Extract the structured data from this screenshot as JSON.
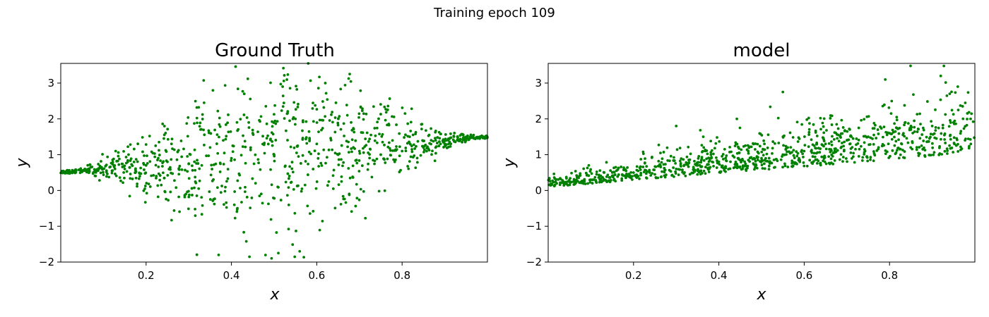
{
  "suptitle": "Training epoch 109",
  "chart_data": [
    {
      "type": "scatter",
      "title": "Ground Truth",
      "xlabel": "x",
      "ylabel": "y",
      "xlim": [
        0.0,
        1.0
      ],
      "ylim": [
        -2.0,
        3.55
      ],
      "xticks": [
        0.2,
        0.4,
        0.6,
        0.8
      ],
      "yticks": [
        -2,
        -1,
        0,
        1,
        2,
        3
      ],
      "color": "#008000",
      "n_points": 1000,
      "noise_profile": "mean rises from 0.5 (x=0) to 1.5 (x=1); spread near zero at edges, maximal (~1.2 std) around x=0.5",
      "sample_points": [
        [
          0.02,
          0.5
        ],
        [
          0.05,
          0.52
        ],
        [
          0.08,
          0.55
        ],
        [
          0.12,
          0.55
        ],
        [
          0.15,
          0.6
        ],
        [
          0.2,
          0.7
        ],
        [
          0.25,
          0.8
        ],
        [
          0.3,
          0.75
        ],
        [
          0.35,
          1.2
        ],
        [
          0.4,
          0.9
        ],
        [
          0.45,
          1.6
        ],
        [
          0.5,
          1.0
        ],
        [
          0.55,
          2.0
        ],
        [
          0.6,
          1.3
        ],
        [
          0.65,
          1.0
        ],
        [
          0.7,
          1.1
        ],
        [
          0.75,
          1.0
        ],
        [
          0.8,
          1.1
        ],
        [
          0.85,
          1.2
        ],
        [
          0.9,
          1.3
        ],
        [
          0.95,
          1.4
        ],
        [
          0.99,
          1.48
        ],
        [
          0.37,
          -1.8
        ],
        [
          0.51,
          -1.75
        ],
        [
          0.56,
          -1.7
        ],
        [
          0.62,
          3.0
        ],
        [
          0.58,
          3.55
        ],
        [
          0.52,
          2.9
        ],
        [
          0.43,
          2.7
        ]
      ]
    },
    {
      "type": "scatter",
      "title": "model",
      "xlabel": "x",
      "ylabel": "y",
      "xlim": [
        0.0,
        1.0
      ],
      "ylim": [
        -2.0,
        3.55
      ],
      "xticks": [
        0.2,
        0.4,
        0.6,
        0.8
      ],
      "yticks": [
        -2,
        -1,
        0,
        1,
        2,
        3
      ],
      "color": "#008000",
      "n_points": 1000,
      "noise_profile": "lower edge rises from ~0.1 at x=0 to ~1.0 at x=1; upward-skewed spread growing with x",
      "sample_points": [
        [
          0.02,
          0.2
        ],
        [
          0.05,
          0.25
        ],
        [
          0.1,
          0.3
        ],
        [
          0.15,
          0.4
        ],
        [
          0.2,
          0.5
        ],
        [
          0.25,
          0.45
        ],
        [
          0.3,
          0.6
        ],
        [
          0.35,
          0.7
        ],
        [
          0.4,
          0.8
        ],
        [
          0.45,
          0.85
        ],
        [
          0.5,
          0.9
        ],
        [
          0.55,
          1.0
        ],
        [
          0.6,
          1.1
        ],
        [
          0.65,
          1.3
        ],
        [
          0.7,
          1.4
        ],
        [
          0.75,
          1.5
        ],
        [
          0.8,
          1.6
        ],
        [
          0.85,
          1.7
        ],
        [
          0.9,
          1.8
        ],
        [
          0.95,
          1.9
        ],
        [
          0.99,
          2.0
        ],
        [
          0.3,
          1.8
        ],
        [
          0.55,
          2.75
        ],
        [
          0.79,
          3.1
        ],
        [
          0.92,
          3.2
        ],
        [
          0.96,
          2.9
        ]
      ]
    }
  ]
}
